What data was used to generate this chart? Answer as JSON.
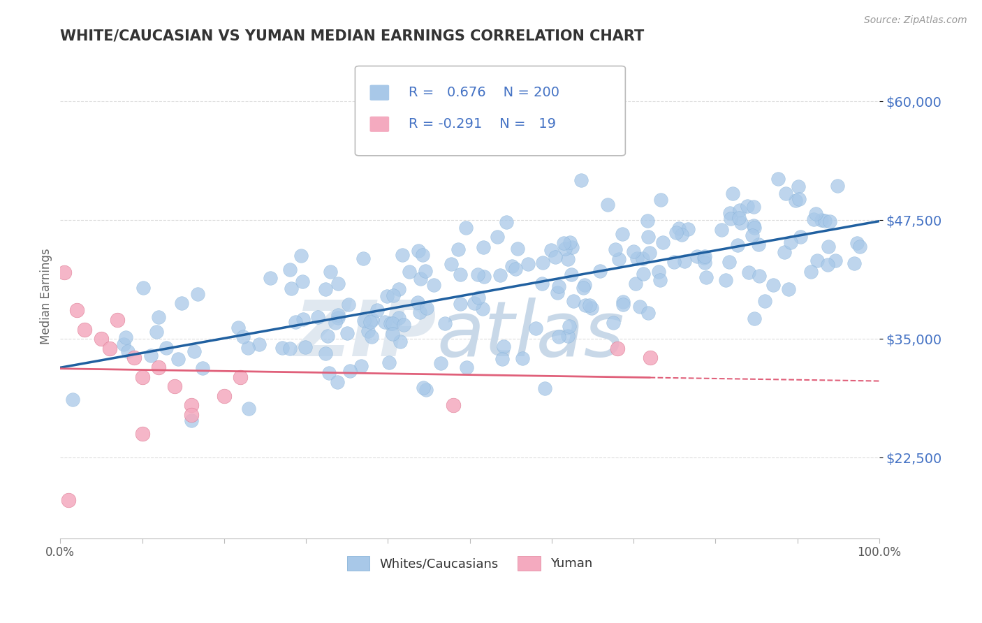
{
  "title": "WHITE/CAUCASIAN VS YUMAN MEDIAN EARNINGS CORRELATION CHART",
  "source": "Source: ZipAtlas.com",
  "ylabel": "Median Earnings",
  "x_min": 0.0,
  "x_max": 1.0,
  "y_min": 14000,
  "y_max": 65000,
  "yticks": [
    22500,
    35000,
    47500,
    60000
  ],
  "ytick_labels": [
    "$22,500",
    "$35,000",
    "$47,500",
    "$60,000"
  ],
  "xticks": [
    0.0,
    0.1,
    0.2,
    0.3,
    0.4,
    0.5,
    0.6,
    0.7,
    0.8,
    0.9,
    1.0
  ],
  "xtick_labels": [
    "0.0%",
    "",
    "",
    "",
    "",
    "",
    "",
    "",
    "",
    "",
    "100.0%"
  ],
  "blue_color": "#A8C8E8",
  "blue_edge_color": "#7aaad4",
  "blue_line_color": "#2060A0",
  "pink_color": "#F4AABF",
  "pink_edge_color": "#e08098",
  "pink_line_color": "#E0607A",
  "R_blue": 0.676,
  "N_blue": 200,
  "R_pink": -0.291,
  "N_pink": 19,
  "legend_label_blue": "Whites/Caucasians",
  "legend_label_pink": "Yuman",
  "watermark_zip": "ZIP",
  "watermark_atlas": "atlas",
  "background_color": "#ffffff",
  "grid_color": "#cccccc",
  "title_color": "#333333",
  "axis_label_color": "#666666",
  "tick_label_color": "#4472C4",
  "seed_blue": 7,
  "seed_pink": 15,
  "blue_intercept": 32000,
  "blue_slope": 15000,
  "pink_intercept": 38000,
  "pink_slope": -10000
}
